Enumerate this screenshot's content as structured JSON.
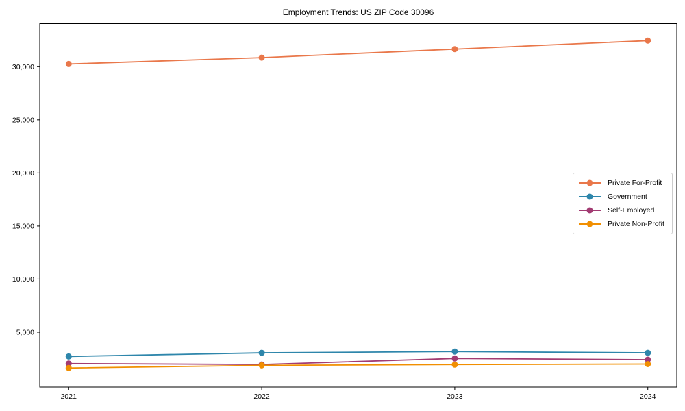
{
  "chart_data": {
    "type": "line",
    "title": "Employment Trends: US ZIP Code 30096",
    "x": [
      "2021",
      "2022",
      "2023",
      "2024"
    ],
    "xlabel": "",
    "ylabel": "",
    "ylim": [
      -160,
      34050
    ],
    "yticks": [
      5000,
      10000,
      15000,
      20000,
      25000,
      30000
    ],
    "grid": false,
    "legend_position": "center-right",
    "series": [
      {
        "name": "Private For-Profit",
        "color": "#E9774A",
        "values": [
          30250,
          30850,
          31650,
          32450
        ]
      },
      {
        "name": "Government",
        "color": "#2E86AB",
        "values": [
          2720,
          3060,
          3180,
          3060
        ]
      },
      {
        "name": "Self-Employed",
        "color": "#A23B72",
        "values": [
          2050,
          1960,
          2530,
          2420
        ]
      },
      {
        "name": "Private Non-Profit",
        "color": "#F18F01",
        "values": [
          1630,
          1880,
          1950,
          2000
        ]
      }
    ]
  }
}
